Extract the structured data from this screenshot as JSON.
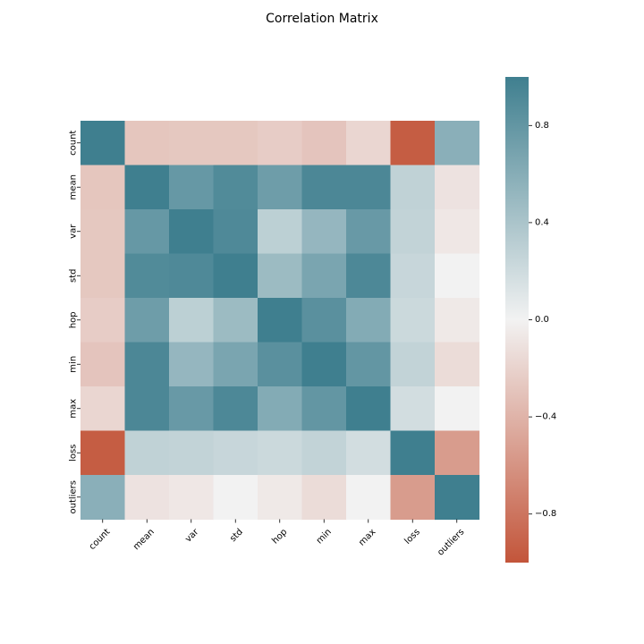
{
  "chart_data": {
    "type": "heatmap",
    "title": "Correlation Matrix",
    "xlabel": "",
    "ylabel": "",
    "labels": [
      "count",
      "mean",
      "var",
      "std",
      "hop",
      "min",
      "max",
      "loss",
      "outliers"
    ],
    "matrix": [
      [
        1.0,
        -0.28,
        -0.27,
        -0.27,
        -0.24,
        -0.29,
        -0.18,
        -0.95,
        0.58
      ],
      [
        -0.28,
        1.0,
        0.78,
        0.9,
        0.74,
        0.93,
        0.93,
        0.28,
        -0.1
      ],
      [
        -0.27,
        0.78,
        1.0,
        0.91,
        0.3,
        0.52,
        0.77,
        0.27,
        -0.07
      ],
      [
        -0.27,
        0.9,
        0.91,
        1.0,
        0.48,
        0.67,
        0.92,
        0.24,
        0.0
      ],
      [
        -0.24,
        0.74,
        0.3,
        0.48,
        1.0,
        0.85,
        0.62,
        0.22,
        -0.06
      ],
      [
        -0.29,
        0.93,
        0.52,
        0.67,
        0.85,
        1.0,
        0.8,
        0.27,
        -0.14
      ],
      [
        -0.18,
        0.93,
        0.77,
        0.92,
        0.62,
        0.8,
        1.0,
        0.18,
        0.0
      ],
      [
        -0.95,
        0.28,
        0.27,
        0.24,
        0.22,
        0.27,
        0.18,
        1.0,
        -0.55
      ],
      [
        0.58,
        -0.1,
        -0.07,
        0.0,
        -0.06,
        -0.14,
        0.0,
        -0.55,
        1.0
      ]
    ],
    "colorbar": {
      "vmin": -1.0,
      "vmax": 1.0,
      "ticks": [
        0.8,
        0.4,
        0.0,
        -0.4,
        -0.8
      ],
      "tick_labels": [
        "0.8",
        "0.4",
        "0.0",
        "−0.4",
        "−0.8"
      ]
    },
    "colormap": {
      "low": "#c3553a",
      "mid": "#f2f2f2",
      "high": "#3f7f8f"
    }
  }
}
